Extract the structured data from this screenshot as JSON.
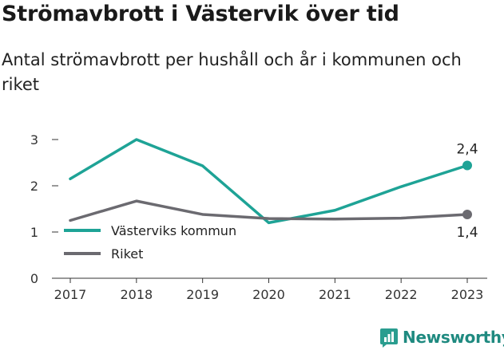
{
  "header": {
    "title": "Strömavbrott i Västervik över tid",
    "subtitle": "Antal strömavbrott per hushåll och år i kommunen och riket"
  },
  "brand": {
    "name": "Newsworthy",
    "icon": "bar-chart-logo-icon"
  },
  "colors": {
    "primary": "#1ea396",
    "secondary": "#6b6a70",
    "axis": "#333333",
    "grid": "#e6e6e6"
  },
  "chart_data": {
    "type": "line",
    "x": [
      "2017",
      "2018",
      "2019",
      "2020",
      "2021",
      "2022",
      "2023"
    ],
    "ylim": [
      0,
      3
    ],
    "yticks": [
      "0",
      "1",
      "2",
      "3"
    ],
    "grid": false,
    "legend_position": "left-middle",
    "series": [
      {
        "name": "Västerviks kommun",
        "values": [
          2.15,
          3.0,
          2.43,
          1.2,
          1.47,
          1.98,
          2.44
        ],
        "end_label": "2,4",
        "color": "#1ea396"
      },
      {
        "name": "Riket",
        "values": [
          1.25,
          1.67,
          1.38,
          1.29,
          1.28,
          1.3,
          1.38
        ],
        "end_label": "1,4",
        "color": "#6b6a70"
      }
    ]
  }
}
